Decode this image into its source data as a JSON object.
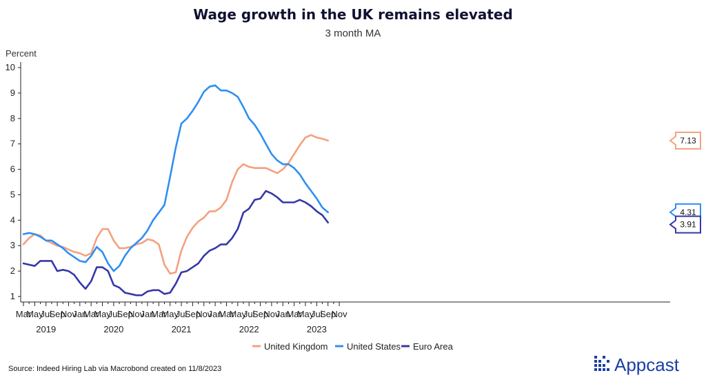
{
  "chart_data": {
    "type": "line",
    "title": "Wage growth in the UK remains elevated",
    "subtitle": "3 month MA",
    "ylabel": "Percent",
    "xlabel": "",
    "ylim": [
      0.8,
      10
    ],
    "yticks": [
      1,
      2,
      3,
      4,
      5,
      6,
      7,
      8,
      9,
      10
    ],
    "x_start": "2019-03",
    "x_end": "2023-11",
    "month_tick_labels": [
      "Mar",
      "May",
      "Jul",
      "Sep",
      "Nov",
      "Jan",
      "Mar",
      "May",
      "Jul",
      "Sep",
      "Nov",
      "Jan",
      "Mar",
      "May",
      "Jul",
      "Sep",
      "Nov",
      "Jan",
      "Mar",
      "May",
      "Jul",
      "Sep",
      "Nov",
      "Jan",
      "Mar",
      "May",
      "Jul",
      "Sep",
      "Nov"
    ],
    "year_labels": [
      {
        "label": "2019",
        "month": "2019-07"
      },
      {
        "label": "2020",
        "month": "2020-07"
      },
      {
        "label": "2021",
        "month": "2021-07"
      },
      {
        "label": "2022",
        "month": "2022-07"
      },
      {
        "label": "2023",
        "month": "2023-07"
      }
    ],
    "grid": false,
    "legend_position": "bottom",
    "months": [
      "2019-03",
      "2019-04",
      "2019-05",
      "2019-06",
      "2019-07",
      "2019-08",
      "2019-09",
      "2019-10",
      "2019-11",
      "2019-12",
      "2020-01",
      "2020-02",
      "2020-03",
      "2020-04",
      "2020-05",
      "2020-06",
      "2020-07",
      "2020-08",
      "2020-09",
      "2020-10",
      "2020-11",
      "2020-12",
      "2021-01",
      "2021-02",
      "2021-03",
      "2021-04",
      "2021-05",
      "2021-06",
      "2021-07",
      "2021-08",
      "2021-09",
      "2021-10",
      "2021-11",
      "2021-12",
      "2022-01",
      "2022-02",
      "2022-03",
      "2022-04",
      "2022-05",
      "2022-06",
      "2022-07",
      "2022-08",
      "2022-09",
      "2022-10",
      "2022-11",
      "2022-12",
      "2023-01",
      "2023-02",
      "2023-03",
      "2023-04",
      "2023-05",
      "2023-06",
      "2023-07",
      "2023-08",
      "2023-09"
    ],
    "series": [
      {
        "name": "United Kingdom",
        "color": "#f4a07e",
        "values": [
          3.05,
          3.3,
          3.45,
          3.4,
          3.2,
          3.1,
          3.0,
          2.95,
          2.85,
          2.75,
          2.7,
          2.6,
          2.7,
          3.3,
          3.65,
          3.65,
          3.2,
          2.9,
          2.9,
          2.95,
          3.05,
          3.1,
          3.25,
          3.2,
          3.05,
          2.25,
          1.9,
          1.95,
          2.8,
          3.35,
          3.7,
          3.95,
          4.1,
          4.35,
          4.35,
          4.5,
          4.8,
          5.5,
          6.0,
          6.2,
          6.1,
          6.05,
          6.05,
          6.05,
          5.95,
          5.85,
          6.0,
          6.25,
          6.6,
          6.95,
          7.25,
          7.35,
          7.25,
          7.2,
          7.13
        ],
        "end_label": "7.13"
      },
      {
        "name": "United States",
        "color": "#2e8ff0",
        "values": [
          3.45,
          3.5,
          3.45,
          3.35,
          3.2,
          3.2,
          3.05,
          2.9,
          2.7,
          2.55,
          2.4,
          2.35,
          2.6,
          2.95,
          2.75,
          2.3,
          2.0,
          2.2,
          2.6,
          2.9,
          3.1,
          3.3,
          3.6,
          4.0,
          4.3,
          4.6,
          5.7,
          6.85,
          7.8,
          8.0,
          8.3,
          8.65,
          9.05,
          9.25,
          9.3,
          9.1,
          9.1,
          9.0,
          8.85,
          8.45,
          8.0,
          7.75,
          7.4,
          7.0,
          6.6,
          6.35,
          6.2,
          6.2,
          6.05,
          5.8,
          5.45,
          5.15,
          4.85,
          4.5,
          4.31
        ],
        "end_label": "4.31"
      },
      {
        "name": "Euro Area",
        "color": "#3537a8",
        "values": [
          2.3,
          2.25,
          2.2,
          2.4,
          2.4,
          2.4,
          2.0,
          2.05,
          2.0,
          1.85,
          1.55,
          1.3,
          1.6,
          2.15,
          2.15,
          2.0,
          1.45,
          1.35,
          1.15,
          1.1,
          1.05,
          1.05,
          1.2,
          1.25,
          1.25,
          1.1,
          1.15,
          1.5,
          1.95,
          2.0,
          2.15,
          2.3,
          2.6,
          2.8,
          2.9,
          3.05,
          3.05,
          3.3,
          3.65,
          4.3,
          4.45,
          4.8,
          4.85,
          5.15,
          5.05,
          4.9,
          4.7,
          4.7,
          4.7,
          4.8,
          4.7,
          4.55,
          4.35,
          4.2,
          3.91
        ],
        "end_label": "3.91"
      }
    ]
  },
  "footer": {
    "source": "Source: Indeed Hiring Lab via Macrobond created on 11/8/2023",
    "brand": "Appcast",
    "brand_color": "#1a3fa6"
  }
}
